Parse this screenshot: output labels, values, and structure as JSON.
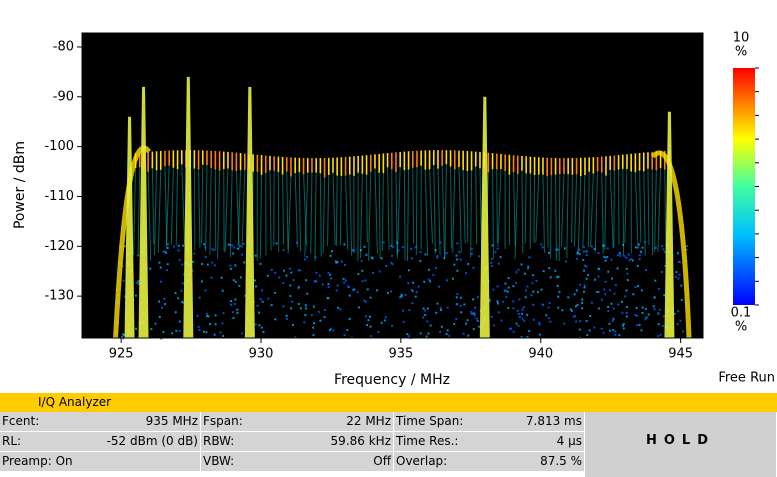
{
  "chart_data": {
    "type": "density",
    "x_label": "Frequency / MHz",
    "y_label": "Power / dBm",
    "xlim": [
      923.6,
      945.8
    ],
    "ylim": [
      -138.4,
      -77.2
    ],
    "xticks": [
      925,
      930,
      935,
      940,
      945
    ],
    "yticks": [
      -80,
      -90,
      -100,
      -110,
      -120,
      -130
    ],
    "peaks": {
      "x": [
        925.3,
        925.8,
        927.4,
        929.6,
        938,
        944.6
      ],
      "y": [
        -94,
        -88,
        -86,
        -88,
        -90,
        -93
      ]
    },
    "colorbar": {
      "max_label": "10",
      "min_label": "0.1",
      "unit": "%"
    }
  },
  "trigger": "Free Run",
  "app_title": "I/Q Analyzer",
  "table": {
    "rows": [
      [
        [
          "Fcent:",
          "935 MHz"
        ],
        [
          "Fspan:",
          "22 MHz"
        ],
        [
          "Time Span:",
          "7.813 ms"
        ]
      ],
      [
        [
          "RL:",
          "-52 dBm (0 dB)"
        ],
        [
          "RBW:",
          "59.86 kHz"
        ],
        [
          "Time Res.:",
          "4 µs"
        ]
      ],
      [
        [
          "Preamp: On",
          ""
        ],
        [
          "VBW:",
          "Off"
        ],
        [
          "Overlap:",
          "87.5 %"
        ]
      ]
    ]
  },
  "state": "HOLD"
}
